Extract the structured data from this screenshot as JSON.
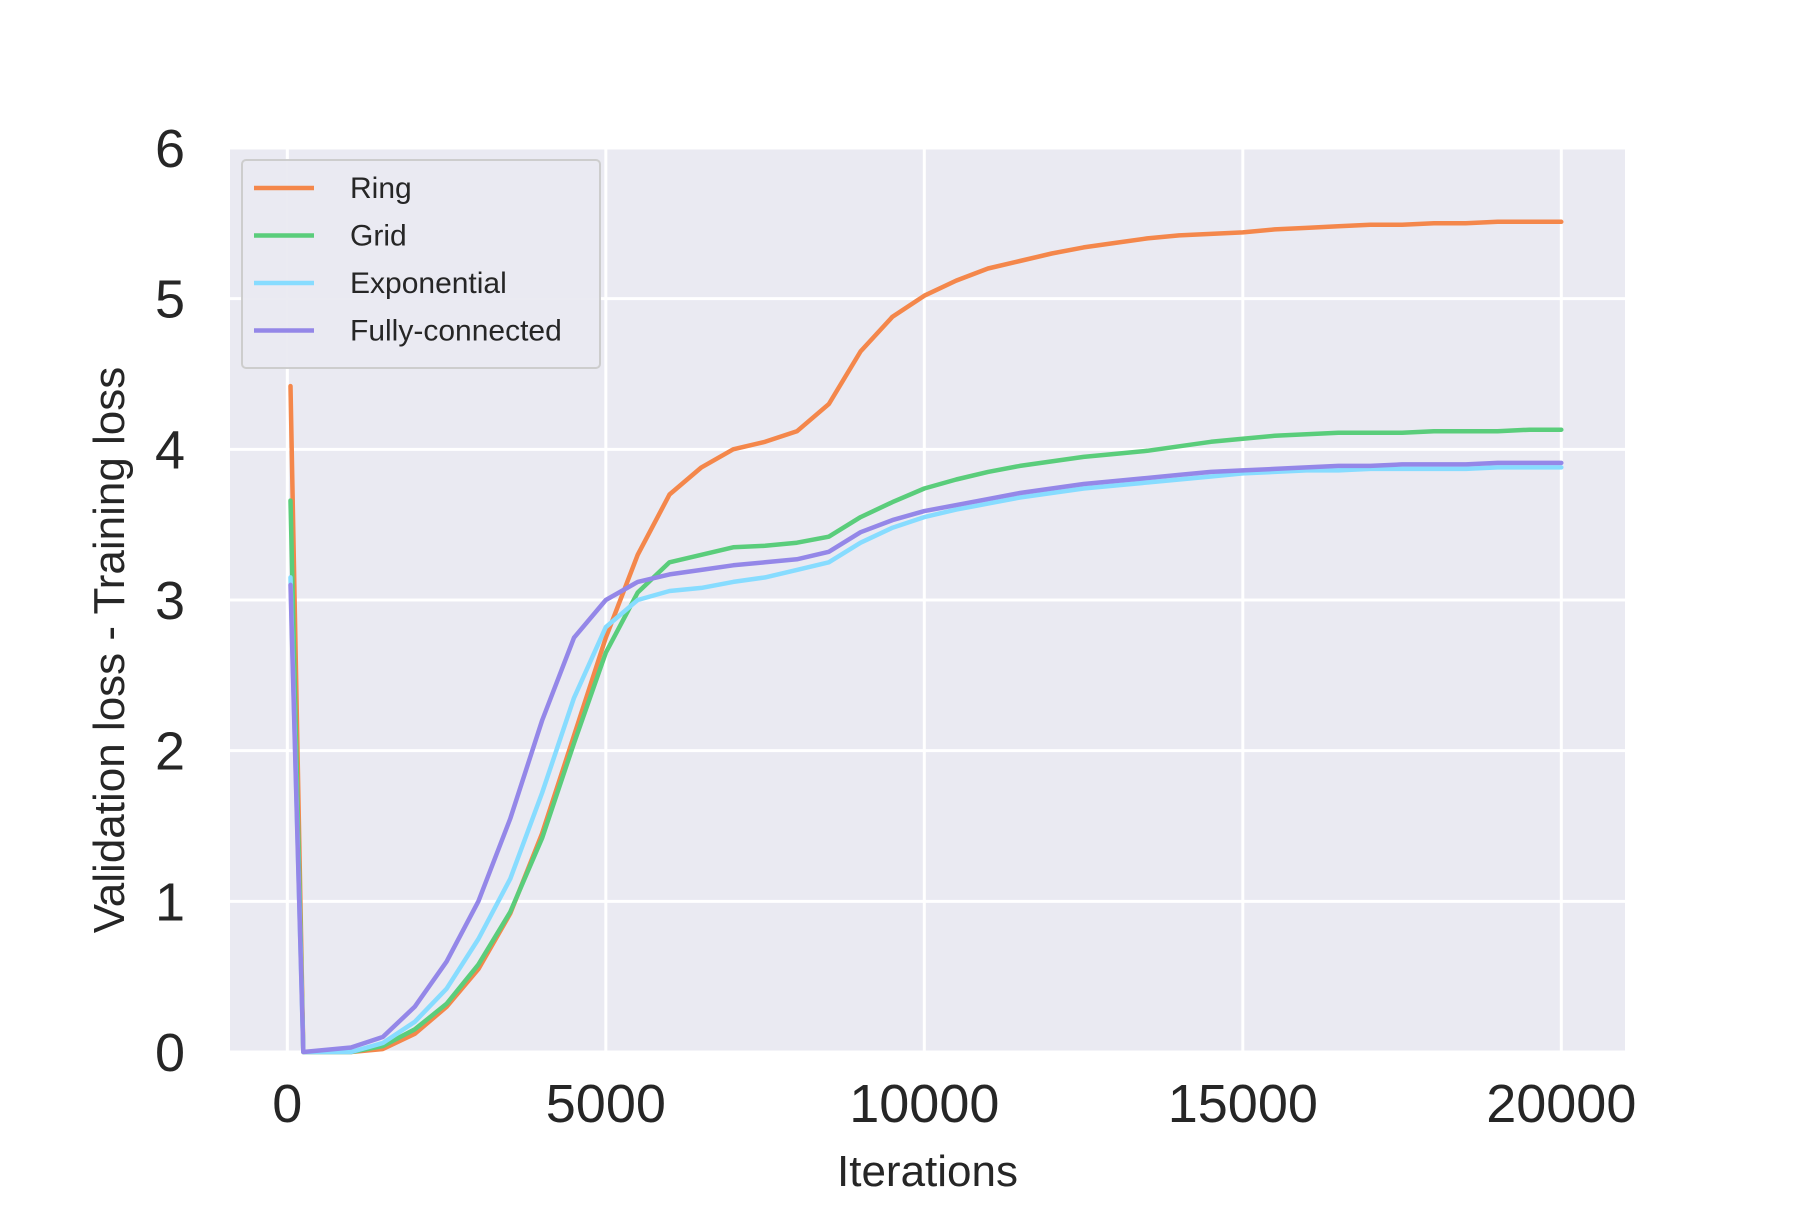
{
  "chart_data": {
    "type": "line",
    "title": "",
    "xlabel": "Iterations",
    "ylabel": "Validation loss - Training loss",
    "xlim": [
      -900,
      21000
    ],
    "ylim": [
      0,
      6
    ],
    "xticks": [
      0,
      5000,
      10000,
      15000,
      20000
    ],
    "xtick_labels": [
      "0",
      "5000",
      "10000",
      "15000",
      "20000"
    ],
    "yticks": [
      0,
      1,
      2,
      3,
      4,
      5,
      6
    ],
    "ytick_labels": [
      "0",
      "1",
      "2",
      "3",
      "4",
      "5",
      "6"
    ],
    "grid": true,
    "legend_position": "top-left",
    "background": "#eaeaf2",
    "series": [
      {
        "name": "Ring",
        "color": "#f4874b",
        "x": [
          50,
          250,
          1000,
          1500,
          2000,
          2500,
          3000,
          3500,
          4000,
          4500,
          5000,
          5500,
          6000,
          6500,
          7000,
          7500,
          8000,
          8500,
          9000,
          9500,
          10000,
          10500,
          11000,
          11500,
          12000,
          12500,
          13000,
          13500,
          14000,
          14500,
          15000,
          15500,
          16000,
          16500,
          17000,
          17500,
          18000,
          18500,
          19000,
          19500,
          20000
        ],
        "y": [
          4.42,
          0.0,
          0.0,
          0.02,
          0.12,
          0.3,
          0.55,
          0.92,
          1.45,
          2.1,
          2.75,
          3.3,
          3.7,
          3.88,
          4.0,
          4.05,
          4.12,
          4.3,
          4.65,
          4.88,
          5.02,
          5.12,
          5.2,
          5.25,
          5.3,
          5.34,
          5.37,
          5.4,
          5.42,
          5.43,
          5.44,
          5.46,
          5.47,
          5.48,
          5.49,
          5.49,
          5.5,
          5.5,
          5.51,
          5.51,
          5.51
        ]
      },
      {
        "name": "Grid",
        "color": "#5acd7b",
        "x": [
          50,
          250,
          1000,
          1500,
          2000,
          2500,
          3000,
          3500,
          4000,
          4500,
          5000,
          5500,
          6000,
          6500,
          7000,
          7500,
          8000,
          8500,
          9000,
          9500,
          10000,
          10500,
          11000,
          11500,
          12000,
          12500,
          13000,
          13500,
          14000,
          14500,
          15000,
          15500,
          16000,
          16500,
          17000,
          17500,
          18000,
          18500,
          19000,
          19500,
          20000
        ],
        "y": [
          3.66,
          0.0,
          0.0,
          0.04,
          0.15,
          0.32,
          0.58,
          0.93,
          1.42,
          2.05,
          2.65,
          3.05,
          3.25,
          3.3,
          3.35,
          3.36,
          3.38,
          3.42,
          3.55,
          3.65,
          3.74,
          3.8,
          3.85,
          3.89,
          3.92,
          3.95,
          3.97,
          3.99,
          4.02,
          4.05,
          4.07,
          4.09,
          4.1,
          4.11,
          4.11,
          4.11,
          4.12,
          4.12,
          4.12,
          4.13,
          4.13
        ]
      },
      {
        "name": "Exponential",
        "color": "#87dcff",
        "x": [
          50,
          250,
          1000,
          1500,
          2000,
          2500,
          3000,
          3500,
          4000,
          4500,
          5000,
          5500,
          6000,
          6500,
          7000,
          7500,
          8000,
          8500,
          9000,
          9500,
          10000,
          10500,
          11000,
          11500,
          12000,
          12500,
          13000,
          13500,
          14000,
          14500,
          15000,
          15500,
          16000,
          16500,
          17000,
          17500,
          18000,
          18500,
          19000,
          19500,
          20000
        ],
        "y": [
          3.15,
          0.0,
          0.0,
          0.06,
          0.2,
          0.42,
          0.75,
          1.15,
          1.72,
          2.35,
          2.82,
          3.0,
          3.06,
          3.08,
          3.12,
          3.15,
          3.2,
          3.25,
          3.38,
          3.48,
          3.55,
          3.6,
          3.64,
          3.68,
          3.71,
          3.74,
          3.76,
          3.78,
          3.8,
          3.82,
          3.84,
          3.85,
          3.86,
          3.86,
          3.87,
          3.87,
          3.87,
          3.87,
          3.88,
          3.88,
          3.88
        ]
      },
      {
        "name": "Fully-connected",
        "color": "#9487e8",
        "x": [
          50,
          250,
          1000,
          1500,
          2000,
          2500,
          3000,
          3500,
          4000,
          4500,
          5000,
          5500,
          6000,
          6500,
          7000,
          7500,
          8000,
          8500,
          9000,
          9500,
          10000,
          10500,
          11000,
          11500,
          12000,
          12500,
          13000,
          13500,
          14000,
          14500,
          15000,
          15500,
          16000,
          16500,
          17000,
          17500,
          18000,
          18500,
          19000,
          19500,
          20000
        ],
        "y": [
          3.1,
          0.0,
          0.03,
          0.1,
          0.3,
          0.6,
          1.0,
          1.55,
          2.2,
          2.75,
          3.0,
          3.12,
          3.17,
          3.2,
          3.23,
          3.25,
          3.27,
          3.32,
          3.45,
          3.53,
          3.59,
          3.63,
          3.67,
          3.71,
          3.74,
          3.77,
          3.79,
          3.81,
          3.83,
          3.85,
          3.86,
          3.87,
          3.88,
          3.89,
          3.89,
          3.9,
          3.9,
          3.9,
          3.91,
          3.91,
          3.91
        ]
      }
    ]
  }
}
